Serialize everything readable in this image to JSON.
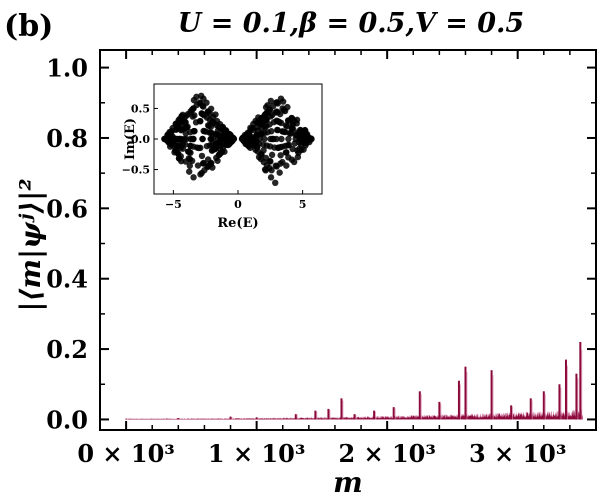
{
  "panel_label": "(b)",
  "title": "U = 0.1,β = 0.5,V = 0.5",
  "colors": {
    "main_fill": "#8b0a3a",
    "main_highlight": "#d98ab0",
    "inset_points": "#000000",
    "axes": "#000000"
  },
  "chart_data": [
    {
      "type": "area",
      "title": "U = 0.1,β = 0.5,V = 0.5",
      "xlabel": "m",
      "ylabel": "|⟨m|ψʲ⟩|²",
      "xlim": [
        -200,
        3600
      ],
      "ylim": [
        -0.03,
        1.05
      ],
      "x_tick_labels": [
        "0 × 10³",
        "1 × 10³",
        "2 × 10³",
        "3 × 10³"
      ],
      "x_tick_values": [
        0,
        1000,
        2000,
        3000
      ],
      "y_tick_labels": [
        "0.0",
        "0.2",
        "0.4",
        "0.6",
        "0.8",
        "1.0"
      ],
      "y_tick_values": [
        0.0,
        0.2,
        0.4,
        0.6,
        0.8,
        1.0
      ],
      "grid": false,
      "peaks": [
        {
          "x": 0,
          "y": 0.002
        },
        {
          "x": 400,
          "y": 0.004
        },
        {
          "x": 800,
          "y": 0.008
        },
        {
          "x": 1000,
          "y": 0.006
        },
        {
          "x": 1300,
          "y": 0.015
        },
        {
          "x": 1450,
          "y": 0.025
        },
        {
          "x": 1550,
          "y": 0.03
        },
        {
          "x": 1650,
          "y": 0.06
        },
        {
          "x": 1750,
          "y": 0.015
        },
        {
          "x": 1900,
          "y": 0.025
        },
        {
          "x": 2050,
          "y": 0.035
        },
        {
          "x": 2250,
          "y": 0.08
        },
        {
          "x": 2400,
          "y": 0.05
        },
        {
          "x": 2550,
          "y": 0.11
        },
        {
          "x": 2600,
          "y": 0.15
        },
        {
          "x": 2800,
          "y": 0.14
        },
        {
          "x": 2950,
          "y": 0.04
        },
        {
          "x": 3100,
          "y": 0.06
        },
        {
          "x": 3200,
          "y": 0.08
        },
        {
          "x": 3320,
          "y": 0.1
        },
        {
          "x": 3370,
          "y": 0.17
        },
        {
          "x": 3450,
          "y": 0.13
        },
        {
          "x": 3480,
          "y": 0.22
        }
      ]
    },
    {
      "type": "scatter",
      "xlabel": "Re(E)",
      "ylabel": "Im(E)",
      "xlim": [
        -6.5,
        6.5
      ],
      "ylim": [
        -0.9,
        0.9
      ],
      "x_tick_labels": [
        "−5",
        "0",
        "5"
      ],
      "x_tick_values": [
        -5,
        0,
        5
      ],
      "y_tick_labels": [
        "0.5",
        "0.0",
        "−0.5"
      ],
      "y_tick_values": [
        0.5,
        0.0,
        -0.5
      ],
      "lobes": [
        {
          "center_re": -3.0,
          "half_width_re": 2.7,
          "im_max": 0.75
        },
        {
          "center_re": 3.0,
          "half_width_re": 2.7,
          "im_max": 0.75
        }
      ]
    }
  ]
}
